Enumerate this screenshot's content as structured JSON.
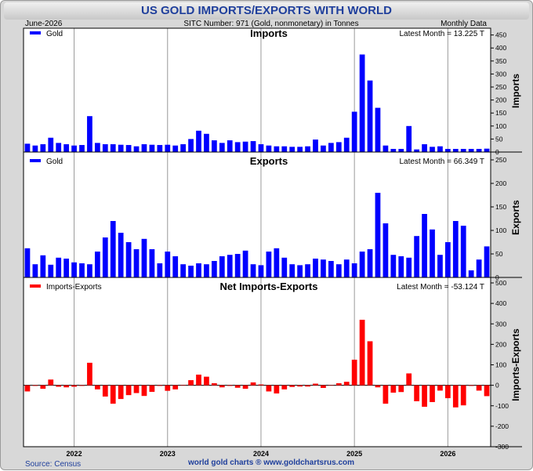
{
  "title": "US GOLD IMPORTS/EXPORTS WITH WORLD",
  "header": {
    "date": "June-2026",
    "series_info": "SITC Number: 971 (Gold, nonmonetary) in Tonnes",
    "frequency": "Monthly Data"
  },
  "footer": {
    "source": "Source: Census",
    "site": "world gold charts ® www.goldchartsrus.com"
  },
  "colors": {
    "imports": "#0000ff",
    "exports": "#0000ff",
    "net": "#ff0000",
    "title": "#1f3f9c"
  },
  "x_ticks": [
    "2022",
    "2023",
    "2024",
    "2025",
    "2026"
  ],
  "chart_data": [
    {
      "type": "bar",
      "title": "Imports",
      "ylabel": "Imports",
      "legend": "Gold",
      "legend_position": "top-left",
      "latest": "Latest Month = 13.225 T",
      "ylim": [
        0,
        470
      ],
      "yticks": [
        "0",
        "50",
        "100",
        "150",
        "200",
        "250",
        "300",
        "350",
        "400",
        "450"
      ],
      "x": [
        "2021-07",
        "2021-08",
        "2021-09",
        "2021-10",
        "2021-11",
        "2021-12",
        "2022-01",
        "2022-02",
        "2022-03",
        "2022-04",
        "2022-05",
        "2022-06",
        "2022-07",
        "2022-08",
        "2022-09",
        "2022-10",
        "2022-11",
        "2022-12",
        "2023-01",
        "2023-02",
        "2023-03",
        "2023-04",
        "2023-05",
        "2023-06",
        "2023-07",
        "2023-08",
        "2023-09",
        "2023-10",
        "2023-11",
        "2023-12",
        "2024-01",
        "2024-02",
        "2024-03",
        "2024-04",
        "2024-05",
        "2024-06",
        "2024-07",
        "2024-08",
        "2024-09",
        "2024-10",
        "2024-11",
        "2024-12",
        "2025-01",
        "2025-02",
        "2025-03",
        "2025-04",
        "2025-05",
        "2025-06",
        "2025-07",
        "2025-08",
        "2025-09",
        "2025-10",
        "2025-11",
        "2025-12",
        "2026-01",
        "2026-02",
        "2026-03",
        "2026-04",
        "2026-05",
        "2026-06"
      ],
      "values": [
        32,
        25,
        30,
        55,
        35,
        30,
        25,
        27,
        138,
        35,
        30,
        30,
        28,
        27,
        22,
        30,
        28,
        27,
        28,
        25,
        30,
        50,
        82,
        70,
        45,
        35,
        45,
        38,
        40,
        42,
        30,
        25,
        22,
        22,
        20,
        20,
        22,
        48,
        25,
        35,
        38,
        55,
        155,
        375,
        275,
        170,
        25,
        12,
        12,
        100,
        10,
        30,
        20,
        22,
        12,
        12,
        12,
        12,
        12,
        13
      ]
    },
    {
      "type": "bar",
      "title": "Exports",
      "ylabel": "Exports",
      "legend": "Gold",
      "legend_position": "top-left",
      "latest": "Latest Month = 66.349 T",
      "ylim": [
        0,
        255
      ],
      "yticks": [
        "0",
        "50",
        "100",
        "150",
        "200",
        "250"
      ],
      "x": [
        "2021-07",
        "2021-08",
        "2021-09",
        "2021-10",
        "2021-11",
        "2021-12",
        "2022-01",
        "2022-02",
        "2022-03",
        "2022-04",
        "2022-05",
        "2022-06",
        "2022-07",
        "2022-08",
        "2022-09",
        "2022-10",
        "2022-11",
        "2022-12",
        "2023-01",
        "2023-02",
        "2023-03",
        "2023-04",
        "2023-05",
        "2023-06",
        "2023-07",
        "2023-08",
        "2023-09",
        "2023-10",
        "2023-11",
        "2023-12",
        "2024-01",
        "2024-02",
        "2024-03",
        "2024-04",
        "2024-05",
        "2024-06",
        "2024-07",
        "2024-08",
        "2024-09",
        "2024-10",
        "2024-11",
        "2024-12",
        "2025-01",
        "2025-02",
        "2025-03",
        "2025-04",
        "2025-05",
        "2025-06",
        "2025-07",
        "2025-08",
        "2025-09",
        "2025-10",
        "2025-11",
        "2025-12",
        "2026-01",
        "2026-02",
        "2026-03",
        "2026-04",
        "2026-05",
        "2026-06"
      ],
      "values": [
        62,
        28,
        47,
        27,
        42,
        40,
        32,
        30,
        28,
        55,
        85,
        120,
        95,
        75,
        60,
        82,
        60,
        30,
        55,
        45,
        28,
        25,
        30,
        28,
        35,
        45,
        48,
        50,
        57,
        28,
        26,
        55,
        62,
        42,
        28,
        26,
        28,
        40,
        38,
        35,
        28,
        38,
        30,
        55,
        60,
        180,
        115,
        48,
        45,
        42,
        88,
        135,
        102,
        48,
        75,
        120,
        110,
        15,
        38,
        66
      ]
    },
    {
      "type": "bar",
      "title": "Net Imports-Exports",
      "ylabel": "Imports-Exports",
      "legend": "Imports-Exports",
      "legend_position": "top-left",
      "latest": "Latest Month = -53.124 T",
      "ylim": [
        -300,
        500
      ],
      "yticks": [
        "-300",
        "-200",
        "-100",
        "0",
        "100",
        "200",
        "300",
        "400",
        "500"
      ],
      "x": [
        "2021-07",
        "2021-08",
        "2021-09",
        "2021-10",
        "2021-11",
        "2021-12",
        "2022-01",
        "2022-02",
        "2022-03",
        "2022-04",
        "2022-05",
        "2022-06",
        "2022-07",
        "2022-08",
        "2022-09",
        "2022-10",
        "2022-11",
        "2022-12",
        "2023-01",
        "2023-02",
        "2023-03",
        "2023-04",
        "2023-05",
        "2023-06",
        "2023-07",
        "2023-08",
        "2023-09",
        "2023-10",
        "2023-11",
        "2023-12",
        "2024-01",
        "2024-02",
        "2024-03",
        "2024-04",
        "2024-05",
        "2024-06",
        "2024-07",
        "2024-08",
        "2024-09",
        "2024-10",
        "2024-11",
        "2024-12",
        "2025-01",
        "2025-02",
        "2025-03",
        "2025-04",
        "2025-05",
        "2025-06",
        "2025-07",
        "2025-08",
        "2025-09",
        "2025-10",
        "2025-11",
        "2025-12",
        "2026-01",
        "2026-02",
        "2026-03",
        "2026-04",
        "2026-05",
        "2026-06"
      ],
      "values": [
        -30,
        -3,
        -17,
        28,
        -7,
        -10,
        -7,
        -3,
        110,
        -20,
        -55,
        -90,
        -67,
        -48,
        -38,
        -52,
        -32,
        -3,
        -27,
        -20,
        2,
        25,
        52,
        42,
        10,
        -10,
        -3,
        -12,
        -17,
        14,
        4,
        -30,
        -40,
        -20,
        -8,
        -6,
        -6,
        8,
        -13,
        0,
        10,
        17,
        125,
        320,
        215,
        -10,
        -90,
        -36,
        -33,
        58,
        -78,
        -105,
        -82,
        -26,
        -63,
        -108,
        -98,
        -3,
        -26,
        -53
      ]
    }
  ]
}
